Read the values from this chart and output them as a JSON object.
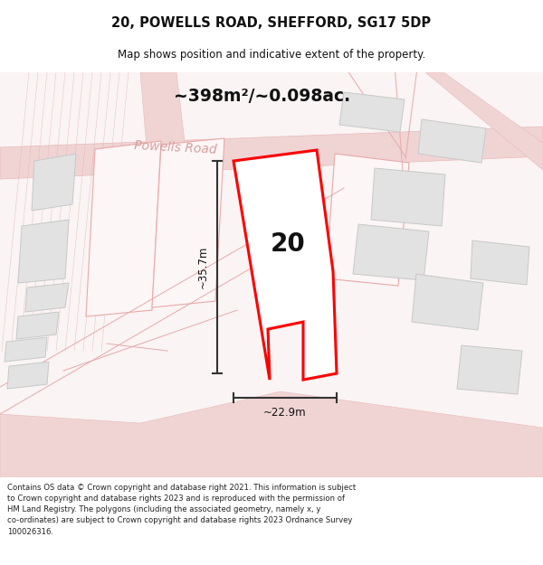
{
  "title": "20, POWELLS ROAD, SHEFFORD, SG17 5DP",
  "subtitle": "Map shows position and indicative extent of the property.",
  "area_text": "~398m²/~0.098ac.",
  "width_text": "~22.9m",
  "height_text": "~35.7m",
  "label": "20",
  "footer": "Contains OS data © Crown copyright and database right 2021. This information is subject to Crown copyright and database rights 2023 and is reproduced with the permission of HM Land Registry. The polygons (including the associated geometry, namely x, y co-ordinates) are subject to Crown copyright and database rights 2023 Ordnance Survey 100026316.",
  "bg_color": "#ffffff",
  "map_bg": "#faf4f4",
  "road_fill": "#f2dcdc",
  "road_edge": "#e8b8b8",
  "plot_color": "#ff0000",
  "building_fc": "#e0e0e0",
  "building_ec": "#cccccc",
  "pink_line": "#e8a8a8",
  "footer_bg": "#dce8f0"
}
